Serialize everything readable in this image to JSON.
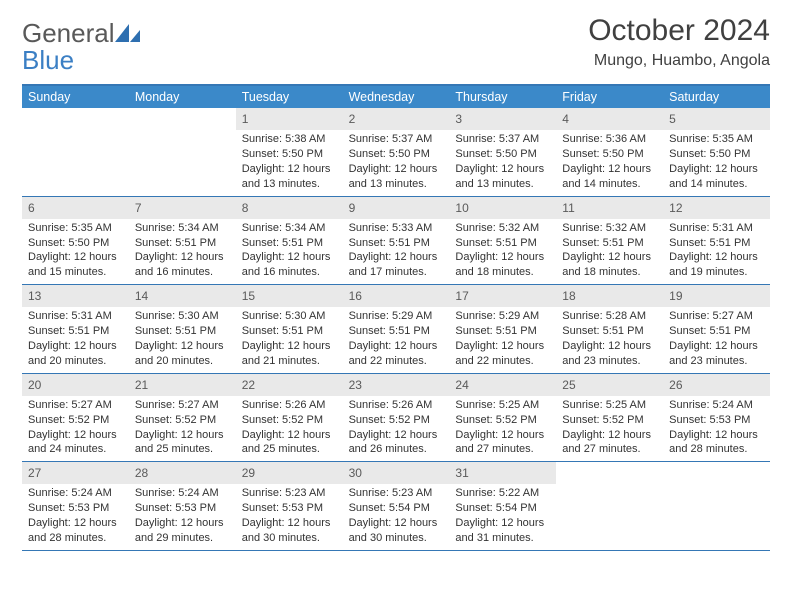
{
  "header": {
    "logo_general": "General",
    "logo_blue": "Blue",
    "month_title": "October 2024",
    "location": "Mungo, Huambo, Angola"
  },
  "colors": {
    "header_bg": "#3b89c9",
    "header_text": "#ffffff",
    "rule": "#3577b5",
    "daynum_bg": "#e9e9e9",
    "daynum_text": "#5a5a5a",
    "body_text": "#333333",
    "title_text": "#404040",
    "logo_gray": "#595959",
    "logo_blue": "#3b7fc4"
  },
  "days_of_week": [
    "Sunday",
    "Monday",
    "Tuesday",
    "Wednesday",
    "Thursday",
    "Friday",
    "Saturday"
  ],
  "layout": {
    "leading_blanks": 2,
    "columns": 7,
    "cell_fontsize": 11,
    "dow_fontsize": 12.5
  },
  "days": [
    {
      "n": "1",
      "sr": "Sunrise: 5:38 AM",
      "ss": "Sunset: 5:50 PM",
      "dl": "Daylight: 12 hours and 13 minutes."
    },
    {
      "n": "2",
      "sr": "Sunrise: 5:37 AM",
      "ss": "Sunset: 5:50 PM",
      "dl": "Daylight: 12 hours and 13 minutes."
    },
    {
      "n": "3",
      "sr": "Sunrise: 5:37 AM",
      "ss": "Sunset: 5:50 PM",
      "dl": "Daylight: 12 hours and 13 minutes."
    },
    {
      "n": "4",
      "sr": "Sunrise: 5:36 AM",
      "ss": "Sunset: 5:50 PM",
      "dl": "Daylight: 12 hours and 14 minutes."
    },
    {
      "n": "5",
      "sr": "Sunrise: 5:35 AM",
      "ss": "Sunset: 5:50 PM",
      "dl": "Daylight: 12 hours and 14 minutes."
    },
    {
      "n": "6",
      "sr": "Sunrise: 5:35 AM",
      "ss": "Sunset: 5:50 PM",
      "dl": "Daylight: 12 hours and 15 minutes."
    },
    {
      "n": "7",
      "sr": "Sunrise: 5:34 AM",
      "ss": "Sunset: 5:51 PM",
      "dl": "Daylight: 12 hours and 16 minutes."
    },
    {
      "n": "8",
      "sr": "Sunrise: 5:34 AM",
      "ss": "Sunset: 5:51 PM",
      "dl": "Daylight: 12 hours and 16 minutes."
    },
    {
      "n": "9",
      "sr": "Sunrise: 5:33 AM",
      "ss": "Sunset: 5:51 PM",
      "dl": "Daylight: 12 hours and 17 minutes."
    },
    {
      "n": "10",
      "sr": "Sunrise: 5:32 AM",
      "ss": "Sunset: 5:51 PM",
      "dl": "Daylight: 12 hours and 18 minutes."
    },
    {
      "n": "11",
      "sr": "Sunrise: 5:32 AM",
      "ss": "Sunset: 5:51 PM",
      "dl": "Daylight: 12 hours and 18 minutes."
    },
    {
      "n": "12",
      "sr": "Sunrise: 5:31 AM",
      "ss": "Sunset: 5:51 PM",
      "dl": "Daylight: 12 hours and 19 minutes."
    },
    {
      "n": "13",
      "sr": "Sunrise: 5:31 AM",
      "ss": "Sunset: 5:51 PM",
      "dl": "Daylight: 12 hours and 20 minutes."
    },
    {
      "n": "14",
      "sr": "Sunrise: 5:30 AM",
      "ss": "Sunset: 5:51 PM",
      "dl": "Daylight: 12 hours and 20 minutes."
    },
    {
      "n": "15",
      "sr": "Sunrise: 5:30 AM",
      "ss": "Sunset: 5:51 PM",
      "dl": "Daylight: 12 hours and 21 minutes."
    },
    {
      "n": "16",
      "sr": "Sunrise: 5:29 AM",
      "ss": "Sunset: 5:51 PM",
      "dl": "Daylight: 12 hours and 22 minutes."
    },
    {
      "n": "17",
      "sr": "Sunrise: 5:29 AM",
      "ss": "Sunset: 5:51 PM",
      "dl": "Daylight: 12 hours and 22 minutes."
    },
    {
      "n": "18",
      "sr": "Sunrise: 5:28 AM",
      "ss": "Sunset: 5:51 PM",
      "dl": "Daylight: 12 hours and 23 minutes."
    },
    {
      "n": "19",
      "sr": "Sunrise: 5:27 AM",
      "ss": "Sunset: 5:51 PM",
      "dl": "Daylight: 12 hours and 23 minutes."
    },
    {
      "n": "20",
      "sr": "Sunrise: 5:27 AM",
      "ss": "Sunset: 5:52 PM",
      "dl": "Daylight: 12 hours and 24 minutes."
    },
    {
      "n": "21",
      "sr": "Sunrise: 5:27 AM",
      "ss": "Sunset: 5:52 PM",
      "dl": "Daylight: 12 hours and 25 minutes."
    },
    {
      "n": "22",
      "sr": "Sunrise: 5:26 AM",
      "ss": "Sunset: 5:52 PM",
      "dl": "Daylight: 12 hours and 25 minutes."
    },
    {
      "n": "23",
      "sr": "Sunrise: 5:26 AM",
      "ss": "Sunset: 5:52 PM",
      "dl": "Daylight: 12 hours and 26 minutes."
    },
    {
      "n": "24",
      "sr": "Sunrise: 5:25 AM",
      "ss": "Sunset: 5:52 PM",
      "dl": "Daylight: 12 hours and 27 minutes."
    },
    {
      "n": "25",
      "sr": "Sunrise: 5:25 AM",
      "ss": "Sunset: 5:52 PM",
      "dl": "Daylight: 12 hours and 27 minutes."
    },
    {
      "n": "26",
      "sr": "Sunrise: 5:24 AM",
      "ss": "Sunset: 5:53 PM",
      "dl": "Daylight: 12 hours and 28 minutes."
    },
    {
      "n": "27",
      "sr": "Sunrise: 5:24 AM",
      "ss": "Sunset: 5:53 PM",
      "dl": "Daylight: 12 hours and 28 minutes."
    },
    {
      "n": "28",
      "sr": "Sunrise: 5:24 AM",
      "ss": "Sunset: 5:53 PM",
      "dl": "Daylight: 12 hours and 29 minutes."
    },
    {
      "n": "29",
      "sr": "Sunrise: 5:23 AM",
      "ss": "Sunset: 5:53 PM",
      "dl": "Daylight: 12 hours and 30 minutes."
    },
    {
      "n": "30",
      "sr": "Sunrise: 5:23 AM",
      "ss": "Sunset: 5:54 PM",
      "dl": "Daylight: 12 hours and 30 minutes."
    },
    {
      "n": "31",
      "sr": "Sunrise: 5:22 AM",
      "ss": "Sunset: 5:54 PM",
      "dl": "Daylight: 12 hours and 31 minutes."
    }
  ]
}
